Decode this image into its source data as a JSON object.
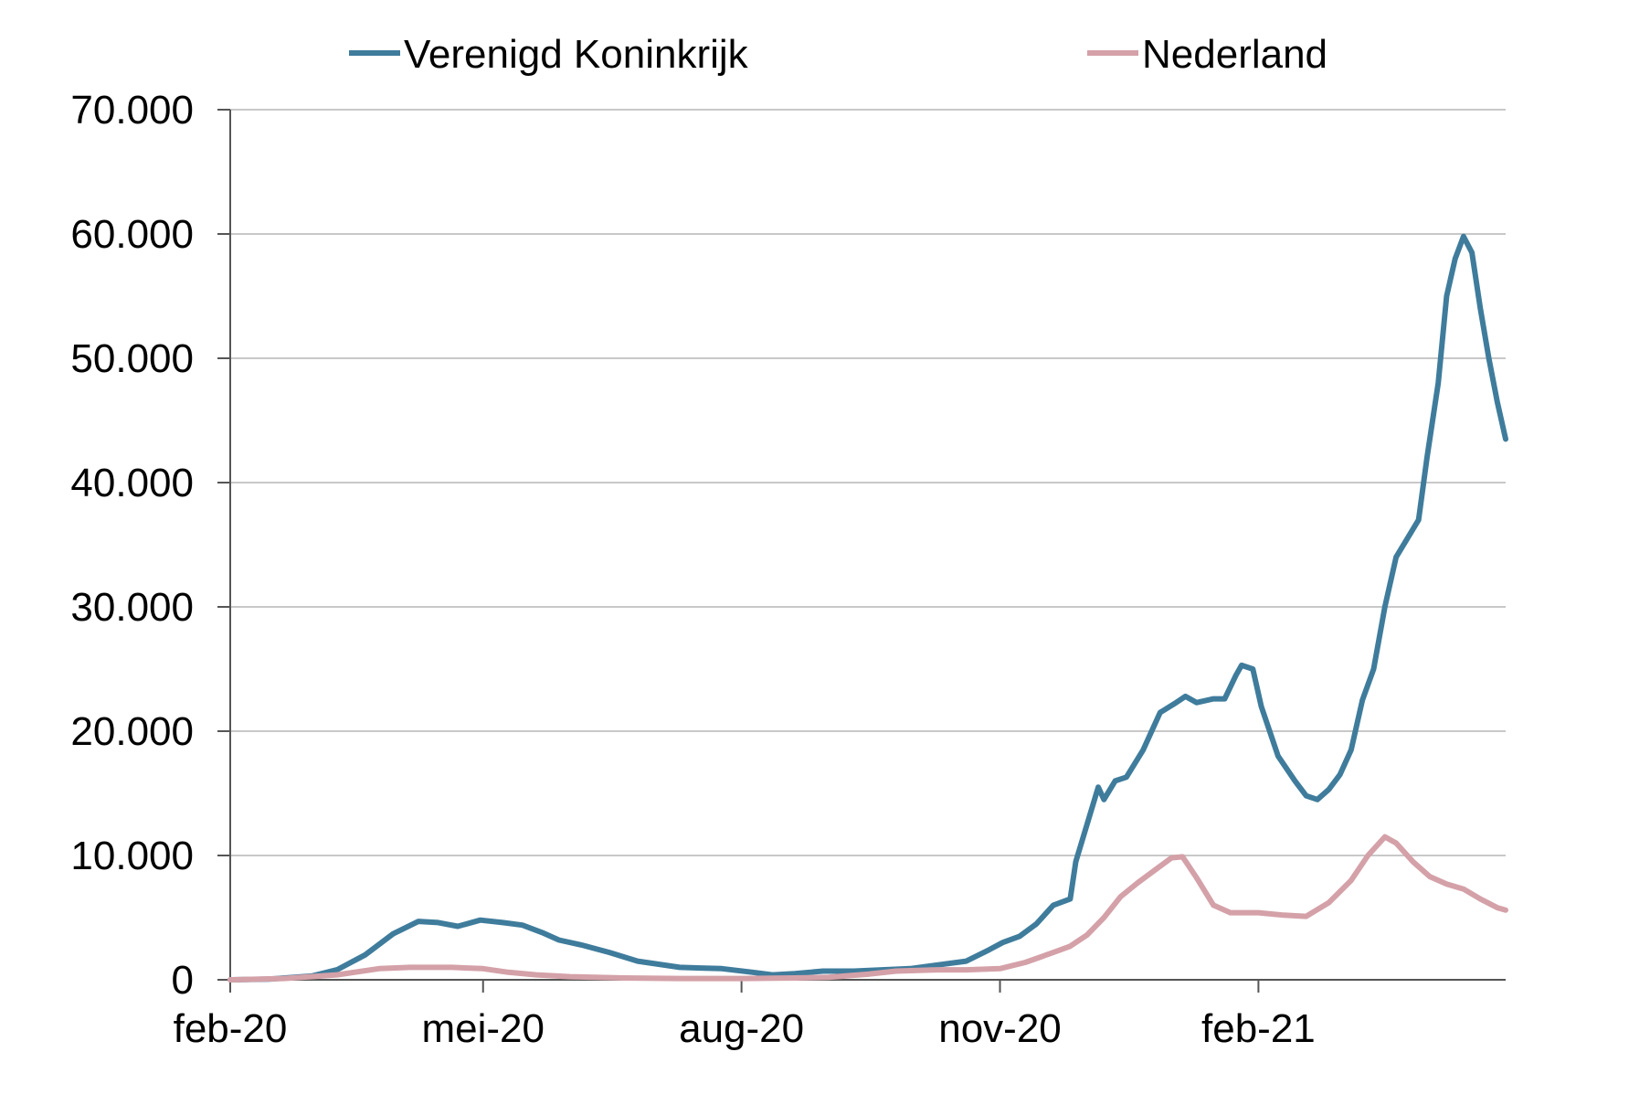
{
  "chart_data": {
    "type": "line",
    "title": "",
    "xlabel": "",
    "ylabel": "",
    "ylim": [
      0,
      70000
    ],
    "y_ticks": [
      0,
      10000,
      20000,
      30000,
      40000,
      50000,
      60000,
      70000
    ],
    "y_tick_labels": [
      "0",
      "10.000",
      "20.000",
      "30.000",
      "40.000",
      "50.000",
      "60.000",
      "70.000"
    ],
    "x_ticks": [
      "2020-02-01",
      "2020-05-01",
      "2020-08-01",
      "2020-11-01",
      "2021-02-01"
    ],
    "x_tick_labels": [
      "feb-20",
      "mei-20",
      "aug-20",
      "nov-20",
      "feb-21"
    ],
    "xlim": [
      "2020-02-01",
      "2021-04-30"
    ],
    "grid": "horizontal",
    "legend_position": "top",
    "series": [
      {
        "name": "Verenigd Koninkrijk",
        "color": "#3f7c9c",
        "points": [
          [
            "2020-02-01",
            0
          ],
          [
            "2020-02-15",
            50
          ],
          [
            "2020-03-01",
            300
          ],
          [
            "2020-03-10",
            800
          ],
          [
            "2020-03-20",
            2000
          ],
          [
            "2020-03-30",
            3700
          ],
          [
            "2020-04-08",
            4700
          ],
          [
            "2020-04-15",
            4600
          ],
          [
            "2020-04-22",
            4300
          ],
          [
            "2020-04-30",
            4800
          ],
          [
            "2020-05-08",
            4600
          ],
          [
            "2020-05-15",
            4400
          ],
          [
            "2020-05-22",
            3800
          ],
          [
            "2020-05-28",
            3200
          ],
          [
            "2020-06-05",
            2800
          ],
          [
            "2020-06-15",
            2200
          ],
          [
            "2020-06-25",
            1500
          ],
          [
            "2020-07-10",
            1000
          ],
          [
            "2020-07-25",
            900
          ],
          [
            "2020-08-05",
            600
          ],
          [
            "2020-08-12",
            400
          ],
          [
            "2020-08-20",
            500
          ],
          [
            "2020-08-30",
            700
          ],
          [
            "2020-09-10",
            700
          ],
          [
            "2020-09-20",
            800
          ],
          [
            "2020-09-30",
            900
          ],
          [
            "2020-10-10",
            1200
          ],
          [
            "2020-10-20",
            1500
          ],
          [
            "2020-10-28",
            2400
          ],
          [
            "2020-11-02",
            3000
          ],
          [
            "2020-11-08",
            3500
          ],
          [
            "2020-11-14",
            4500
          ],
          [
            "2020-11-20",
            6000
          ],
          [
            "2020-11-26",
            6500
          ],
          [
            "2020-11-28",
            9500
          ],
          [
            "2020-12-02",
            12500
          ],
          [
            "2020-12-06",
            15500
          ],
          [
            "2020-12-08",
            14500
          ],
          [
            "2020-12-12",
            16000
          ],
          [
            "2020-12-16",
            16300
          ],
          [
            "2020-12-22",
            18500
          ],
          [
            "2020-12-28",
            21500
          ],
          [
            "2021-01-02",
            22200
          ],
          [
            "2021-01-06",
            22800
          ],
          [
            "2021-01-10",
            22300
          ],
          [
            "2021-01-16",
            22600
          ],
          [
            "2021-01-20",
            22600
          ],
          [
            "2021-01-24",
            24500
          ],
          [
            "2021-01-26",
            25300
          ],
          [
            "2021-01-30",
            25000
          ],
          [
            "2021-02-02",
            22000
          ],
          [
            "2021-02-08",
            18000
          ],
          [
            "2021-02-14",
            16000
          ],
          [
            "2021-02-18",
            14800
          ],
          [
            "2021-02-22",
            14500
          ],
          [
            "2021-02-26",
            15300
          ],
          [
            "2021-03-02",
            16500
          ],
          [
            "2021-03-06",
            18500
          ],
          [
            "2021-03-10",
            22500
          ],
          [
            "2021-03-14",
            25000
          ],
          [
            "2021-03-18",
            30000
          ],
          [
            "2021-03-22",
            34000
          ],
          [
            "2021-03-26",
            35500
          ],
          [
            "2021-03-30",
            37000
          ],
          [
            "2021-04-02",
            42000
          ],
          [
            "2021-04-06",
            48000
          ],
          [
            "2021-04-09",
            55000
          ],
          [
            "2021-04-12",
            58000
          ],
          [
            "2021-04-15",
            59800
          ],
          [
            "2021-04-18",
            58500
          ],
          [
            "2021-04-21",
            54000
          ],
          [
            "2021-04-24",
            50000
          ],
          [
            "2021-04-27",
            46500
          ],
          [
            "2021-04-30",
            43500
          ]
        ]
      },
      {
        "name": "Nederland",
        "color": "#d4a1a8",
        "points": [
          [
            "2020-02-01",
            0
          ],
          [
            "2020-02-20",
            100
          ],
          [
            "2020-03-10",
            400
          ],
          [
            "2020-03-25",
            900
          ],
          [
            "2020-04-05",
            1000
          ],
          [
            "2020-04-20",
            1000
          ],
          [
            "2020-05-01",
            900
          ],
          [
            "2020-05-10",
            600
          ],
          [
            "2020-05-20",
            400
          ],
          [
            "2020-06-01",
            250
          ],
          [
            "2020-06-20",
            150
          ],
          [
            "2020-07-10",
            100
          ],
          [
            "2020-08-01",
            100
          ],
          [
            "2020-08-20",
            150
          ],
          [
            "2020-09-01",
            200
          ],
          [
            "2020-09-15",
            450
          ],
          [
            "2020-09-25",
            700
          ],
          [
            "2020-10-10",
            800
          ],
          [
            "2020-10-20",
            800
          ],
          [
            "2020-11-01",
            900
          ],
          [
            "2020-11-10",
            1400
          ],
          [
            "2020-11-20",
            2200
          ],
          [
            "2020-11-26",
            2700
          ],
          [
            "2020-12-02",
            3600
          ],
          [
            "2020-12-08",
            5000
          ],
          [
            "2020-12-14",
            6700
          ],
          [
            "2020-12-20",
            7800
          ],
          [
            "2020-12-26",
            8800
          ],
          [
            "2021-01-01",
            9800
          ],
          [
            "2021-01-05",
            9900
          ],
          [
            "2021-01-10",
            8200
          ],
          [
            "2021-01-16",
            6000
          ],
          [
            "2021-01-22",
            5400
          ],
          [
            "2021-02-01",
            5400
          ],
          [
            "2021-02-10",
            5200
          ],
          [
            "2021-02-18",
            5100
          ],
          [
            "2021-02-26",
            6200
          ],
          [
            "2021-03-06",
            8000
          ],
          [
            "2021-03-12",
            10000
          ],
          [
            "2021-03-18",
            11500
          ],
          [
            "2021-03-22",
            11000
          ],
          [
            "2021-03-28",
            9500
          ],
          [
            "2021-04-03",
            8300
          ],
          [
            "2021-04-09",
            7700
          ],
          [
            "2021-04-15",
            7300
          ],
          [
            "2021-04-21",
            6500
          ],
          [
            "2021-04-27",
            5800
          ],
          [
            "2021-04-30",
            5600
          ]
        ]
      }
    ]
  }
}
